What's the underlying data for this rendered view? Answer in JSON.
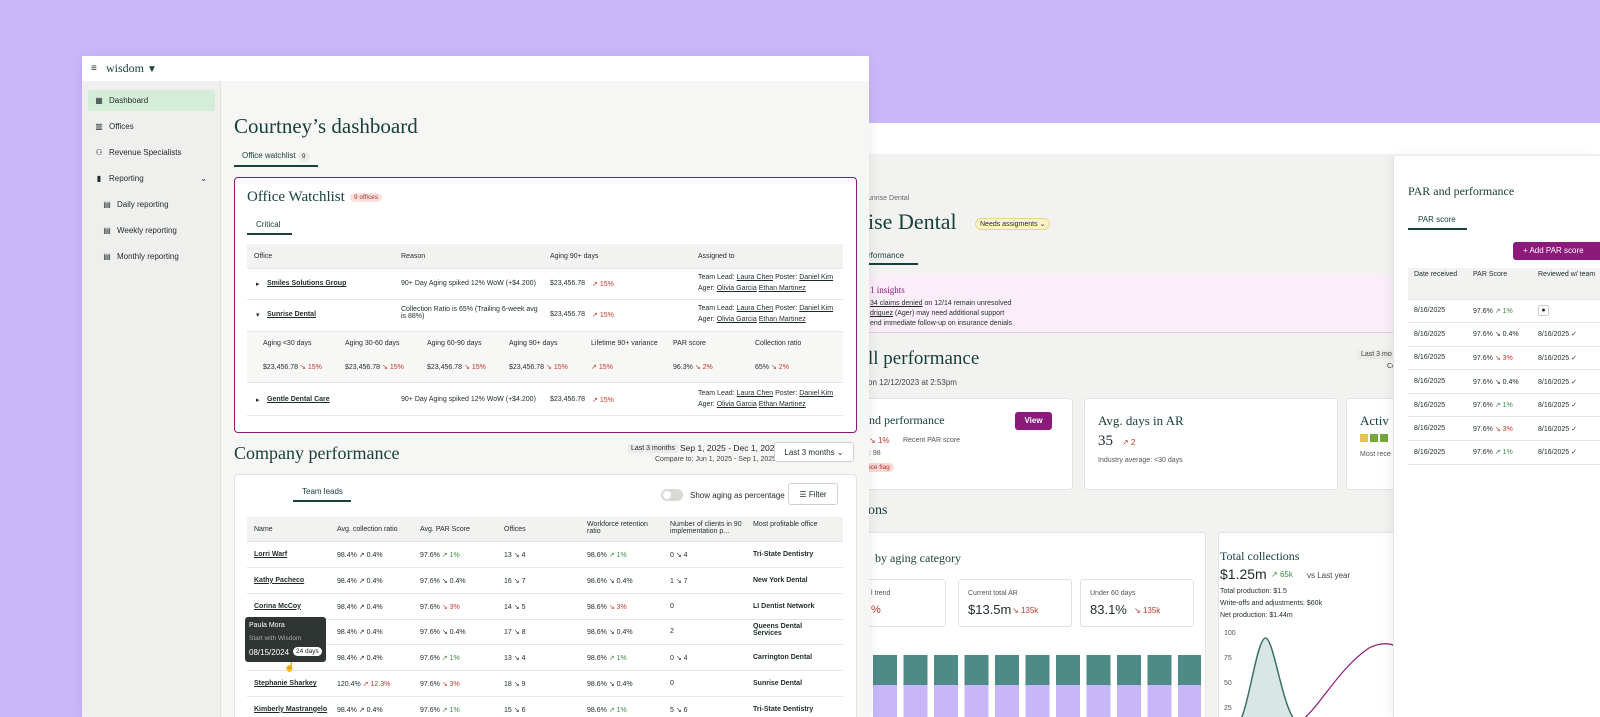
{
  "app": {
    "logo": "wisdom"
  },
  "sidebar": {
    "items": [
      {
        "label": "Dashboard"
      },
      {
        "label": "Offices"
      },
      {
        "label": "Revenue Specialists"
      },
      {
        "label": "Reporting"
      },
      {
        "label": "Daily reporting"
      },
      {
        "label": "Weekly reporting"
      },
      {
        "label": "Monthly reporting"
      }
    ]
  },
  "main": {
    "title": "Courtney’s dashboard",
    "tab_label": "Office watchlist",
    "tab_count": "9"
  },
  "watchlist": {
    "title": "Office Watchlist",
    "badge": "9 offices",
    "tab": "Critical",
    "headers": [
      "Office",
      "Reason",
      "Aging 90+ days",
      "Assigned to"
    ],
    "rows": [
      {
        "office": "Smiles Solutions Group",
        "reason": "90+ Day Aging spiked 12% WoW (+$4.200)",
        "aging": "$23,456.78",
        "trend": "15%",
        "lead_label": "Team Lead:",
        "lead": "Laura Chen",
        "poster_label": "Poster:",
        "poster": "Daniel Kim",
        "ager_label": "Ager:",
        "ager1": "Olivia Garcia",
        "ager2": "Ethan Martinez"
      },
      {
        "office": "Sunrise Dental",
        "reason": "Collection Ratio is 65% (Trailing 6-week avg is 88%)",
        "aging": "$23,456.78",
        "trend": "15%",
        "lead_label": "Team Lead:",
        "lead": "Laura Chen",
        "poster_label": "Poster:",
        "poster": "Daniel Kim",
        "ager_label": "Ager:",
        "ager1": "Olivia Garcia",
        "ager2": "Ethan Martinez"
      },
      {
        "office": "Gentle Dental Care",
        "reason": "90+ Day Aging spiked 12% WoW (+$4.200)",
        "aging": "$23,456.78",
        "trend": "15%",
        "lead_label": "Team Lead:",
        "lead": "Laura Chen",
        "poster_label": "Poster:",
        "poster": "Daniel Kim",
        "ager_label": "Ager:",
        "ager1": "Olivia Garcia",
        "ager2": "Ethan Martinez"
      }
    ],
    "sub_headers": [
      "Aging <30 days",
      "Aging 30-60 days",
      "Aging 60-90 days",
      "Aging 90+ days",
      "Lifetime 90+ variance",
      "PAR score",
      "Collection ratio"
    ],
    "sub_values": [
      {
        "v": "$23,456.78",
        "t": "15%",
        "dir": "dn"
      },
      {
        "v": "$23,456.78",
        "t": "15%",
        "dir": "dn"
      },
      {
        "v": "$23,456.78",
        "t": "15%",
        "dir": "dn"
      },
      {
        "v": "$23,456.78",
        "t": "15%",
        "dir": "dn"
      },
      {
        "v": "",
        "t": "15%",
        "dir": "dn"
      },
      {
        "v": "96.3%",
        "t": "2%",
        "dir": "dn"
      },
      {
        "v": "65%",
        "t": "2%",
        "dir": "dn"
      }
    ]
  },
  "company": {
    "title": "Company performance",
    "range_label": "Last 3 months",
    "range": "Sep 1, 2025 - Dec 1, 2025",
    "compare": "Compare to:  Jun 1, 2025 - Sep 1, 2025",
    "select": "Last 3 months",
    "tab": "Team leads",
    "toggle_label": "Show aging as percentage",
    "filter": "Filter",
    "headers": [
      "Name",
      "Avg. collection ratio",
      "Avg. PAR Score",
      "Offices",
      "Workforce retention ratio",
      "Number of clients in 90 implementation p...",
      "Most profitable office"
    ],
    "rows": [
      {
        "name": "Lorri Warf",
        "acr": "98.4%",
        "acr_t": "0.4%",
        "par": "97.6%",
        "par_t": "1%",
        "par_d": "up",
        "off": "13",
        "off_t": "4",
        "wr": "98.6%",
        "wr_t": "1%",
        "wr_d": "up",
        "n": "0",
        "n_t": "4",
        "mpo": "Tri-State Dentistry"
      },
      {
        "name": "Kathy Pacheco",
        "acr": "98.4%",
        "acr_t": "0.4%",
        "par": "97.6%",
        "par_t": "0.4%",
        "par_d": "n",
        "off": "16",
        "off_t": "7",
        "wr": "98.6%",
        "wr_t": "0.4%",
        "wr_d": "n",
        "n": "1",
        "n_t": "7",
        "mpo": "New York Dental"
      },
      {
        "name": "Corina McCoy",
        "acr": "98.4%",
        "acr_t": "0.4%",
        "par": "97.6%",
        "par_t": "3%",
        "par_d": "dn",
        "off": "14",
        "off_t": "5",
        "wr": "98.6%",
        "wr_t": "3%",
        "wr_d": "dn",
        "n": "0",
        "n_t": "",
        "mpo": "LI Dentist Network"
      },
      {
        "name": "",
        "acr": "98.4%",
        "acr_t": "0.4%",
        "par": "97.6%",
        "par_t": "0.4%",
        "par_d": "n",
        "off": "17",
        "off_t": "8",
        "wr": "98.6%",
        "wr_t": "0.4%",
        "wr_d": "n",
        "n": "2",
        "n_t": "",
        "mpo": "Queens Dental Services"
      },
      {
        "name": "Paula Mora",
        "acr": "98.4%",
        "acr_t": "0.4%",
        "par": "97.6%",
        "par_t": "1%",
        "par_d": "up",
        "off": "13",
        "off_t": "4",
        "wr": "98.6%",
        "wr_t": "1%",
        "wr_d": "up",
        "n": "0",
        "n_t": "4",
        "mpo": "Carrington Dental"
      },
      {
        "name": "Stephanie Sharkey",
        "acr": "120.4%",
        "acr_t": "12.3%",
        "par": "97.6%",
        "par_t": "3%",
        "par_d": "dn",
        "off": "18",
        "off_t": "9",
        "wr": "98.6%",
        "wr_t": "0.4%",
        "wr_d": "n",
        "n": "0",
        "n_t": "",
        "mpo": "Sunrise Dental"
      },
      {
        "name": "Kimberly Mastrangelo",
        "acr": "98.4%",
        "acr_t": "0.4%",
        "par": "97.6%",
        "par_t": "1%",
        "par_d": "up",
        "off": "15",
        "off_t": "6",
        "wr": "98.6%",
        "wr_t": "1%",
        "wr_d": "up",
        "n": "5",
        "n_t": "6",
        "mpo": "Tri-State Dentistry"
      }
    ],
    "tooltip": {
      "name": "Paula Mora",
      "label": "Start with Wisdom",
      "date": "08/15/2024",
      "days": "24 days"
    }
  },
  "back": {
    "breadcrumb": "unrise Dental",
    "title": "ise Dental",
    "badge": "Needs assigments",
    "tab": "rformance",
    "insights_title": "1 insights",
    "insight1a": "34 claims denied",
    "insight1b": " on 12/14 remain unresolved",
    "insight2a": "driguez",
    "insight2b": " (Ager) may need additional support",
    "insight3": "end immediate follow-up on insurance denials",
    "perf_title": "ll performance",
    "perf_sub": " on 12/12/2023 at 2:53pm",
    "range": "Last 3 mo",
    "range2": "Co",
    "card1_title": "nd performance",
    "view": "View",
    "card1_t": "1%",
    "card1_l": "Recent PAR score",
    "card1_c": ": 98",
    "flag": "nce flag",
    "card2_title": "Avg. days in AR",
    "card2_v": "35",
    "card2_t": "2",
    "card2_l": "Industry average: <30 days",
    "card3_title": "Activ",
    "card3_l": "Most rece",
    "section": "ons",
    "aging_title": "by aging category",
    "m1_l": "l trend",
    "m1_v": "%",
    "m2_l": "Current total AR",
    "m2_v": "$13.5m",
    "m2_t": "135k",
    "m3_l": "Under 60 days",
    "m3_v": "83.1%",
    "m3_t": "135k",
    "tc_title": "Total collections",
    "tc_v": "$1.25m",
    "tc_t": "65k",
    "tc_vs": "vs Last year",
    "tc_l1": "Total production: $1.5",
    "tc_l2": "Write-offs and adjustments: $60k",
    "tc_l3": "Net production: $1.44m",
    "y_ticks": [
      "100",
      "75",
      "50",
      "25"
    ]
  },
  "par": {
    "title": "PAR and performance",
    "tab": "PAR score",
    "add": "Add  PAR score",
    "headers": [
      "Date received",
      "PAR Score",
      "Reviewed w/ team"
    ],
    "rows": [
      {
        "d": "8/16/2025",
        "s": "97.6%",
        "t": "1%",
        "dir": "up",
        "r": ""
      },
      {
        "d": "8/16/2025",
        "s": "97.6%",
        "t": "0.4%",
        "dir": "n",
        "r": "8/16/2025"
      },
      {
        "d": "8/16/2025",
        "s": "97.6%",
        "t": "3%",
        "dir": "dn",
        "r": "8/16/2025"
      },
      {
        "d": "8/16/2025",
        "s": "97.6%",
        "t": "0.4%",
        "dir": "n",
        "r": "8/16/2025"
      },
      {
        "d": "8/16/2025",
        "s": "97.6%",
        "t": "1%",
        "dir": "up",
        "r": "8/16/2025"
      },
      {
        "d": "8/16/2025",
        "s": "97.6%",
        "t": "3%",
        "dir": "dn",
        "r": "8/16/2025"
      },
      {
        "d": "8/16/2025",
        "s": "97.6%",
        "t": "1%",
        "dir": "up",
        "r": "8/16/2025"
      }
    ]
  },
  "chart_data": {
    "type": "bar",
    "values": [
      0.5,
      0.5,
      0.5,
      0.5,
      0.5,
      0.5,
      0.5,
      0.5,
      0.5,
      0.5,
      0.5
    ]
  }
}
